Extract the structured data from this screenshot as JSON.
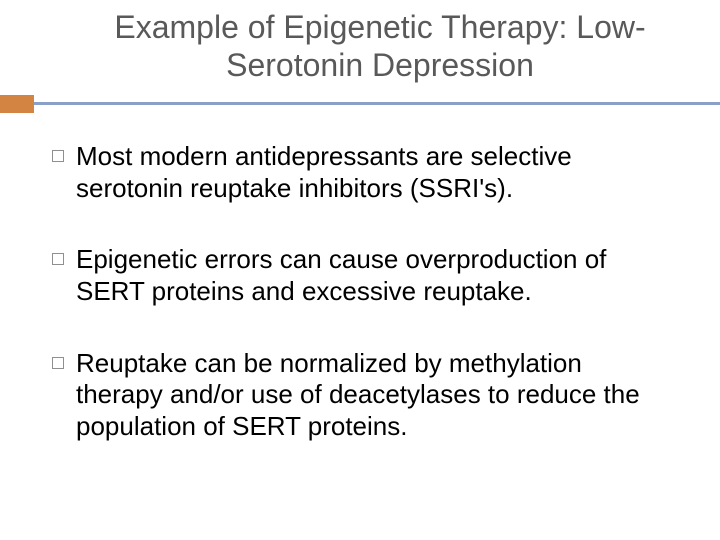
{
  "slide": {
    "title": "Example of Epigenetic Therapy: Low-Serotonin Depression",
    "title_color": "#595959",
    "title_fontsize": 32,
    "accent_box_color": "#d38342",
    "accent_line_color": "#8aa0c8",
    "background_color": "#ffffff",
    "bullets": [
      {
        "text": "Most modern antidepressants are selective serotonin reuptake inhibitors (SSRI's)."
      },
      {
        "text": "Epigenetic errors can cause overproduction of SERT proteins and excessive reuptake."
      },
      {
        "text": "Reuptake can be normalized by methylation therapy and/or use of deacetylases to reduce the population of SERT proteins."
      }
    ],
    "bullet_fontsize": 26,
    "bullet_text_color": "#000000",
    "bullet_marker_border": "#8f8f8f"
  }
}
